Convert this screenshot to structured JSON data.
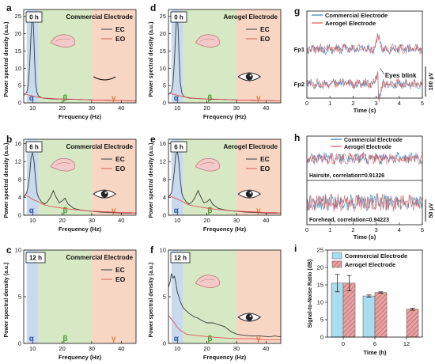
{
  "chart_data": [
    {
      "id": "a",
      "panel_letter": "a",
      "type": "line",
      "time_label": "0 h",
      "electrode_label": "Commercial Electrode",
      "xlabel": "Frequency (Hz)",
      "ylabel": "Power spectral density (a.u.)",
      "xlim": [
        7,
        45
      ],
      "ylim": [
        0,
        27
      ],
      "xticks": [
        10,
        20,
        30,
        40
      ],
      "yticks": [
        0,
        5,
        10,
        15,
        20,
        25
      ],
      "band_labels": [
        "α",
        "β",
        "γ"
      ],
      "bands": [
        {
          "name": "alpha",
          "range": [
            8,
            12
          ],
          "color": "#c9d9ee"
        },
        {
          "name": "beta",
          "range": [
            12,
            30
          ],
          "color": "#d6e9c4"
        },
        {
          "name": "gamma",
          "range": [
            30,
            45
          ],
          "color": "#f8d6c4"
        }
      ],
      "legend": [
        "EC",
        "EO"
      ],
      "legend_position": "top-right",
      "eye_state": "closed",
      "series": [
        {
          "name": "EC",
          "color": "#3a3a3a",
          "x": [
            7,
            8,
            8.5,
            9,
            9.5,
            9.8,
            10,
            10.3,
            10.6,
            11,
            11.5,
            12,
            13,
            14,
            16,
            18,
            20,
            22,
            25,
            28,
            31,
            34,
            37,
            40,
            43,
            45
          ],
          "y": [
            2.2,
            3,
            5,
            11,
            20,
            24.5,
            25.5,
            22,
            14,
            6,
            3,
            2,
            1.5,
            1.3,
            1.2,
            1.1,
            1.1,
            1,
            1,
            0.9,
            0.8,
            0.8,
            0.7,
            0.7,
            0.6,
            0.6
          ]
        },
        {
          "name": "EO",
          "color": "#e05555",
          "x": [
            7,
            8,
            9,
            10,
            11,
            12,
            14,
            16,
            18,
            20,
            22,
            25,
            28,
            31,
            34,
            37,
            40,
            43,
            45
          ],
          "y": [
            2.6,
            2.4,
            2.2,
            2,
            1.8,
            1.6,
            1.4,
            1.3,
            1.2,
            1.1,
            1.1,
            1,
            0.9,
            0.8,
            0.8,
            0.7,
            0.7,
            0.6,
            0.6
          ]
        }
      ]
    },
    {
      "id": "b",
      "panel_letter": "b",
      "type": "line",
      "time_label": "6 h",
      "electrode_label": "Commercial Electrode",
      "xlabel": "Frequency (Hz)",
      "ylabel": "Power spectral density (a.u.)",
      "xlim": [
        7,
        45
      ],
      "ylim": [
        0,
        17
      ],
      "xticks": [
        10,
        20,
        30,
        40
      ],
      "yticks": [
        0,
        4,
        8,
        12,
        16
      ],
      "band_labels": [
        "α",
        "β",
        "γ"
      ],
      "bands": [
        {
          "name": "alpha",
          "range": [
            8,
            12
          ],
          "color": "#c9d9ee"
        },
        {
          "name": "beta",
          "range": [
            12,
            30
          ],
          "color": "#d6e9c4"
        },
        {
          "name": "gamma",
          "range": [
            30,
            45
          ],
          "color": "#f8d6c4"
        }
      ],
      "legend": [
        "EC",
        "EO"
      ],
      "legend_position": "top-right",
      "eye_state": "open",
      "series": [
        {
          "name": "EC",
          "color": "#3a3a3a",
          "x": [
            7,
            8,
            8.5,
            9,
            9.5,
            10,
            10.5,
            11,
            11.5,
            12,
            13,
            14,
            15,
            16,
            17,
            18,
            19,
            20,
            21,
            22,
            24,
            26,
            28,
            30,
            33,
            36,
            40,
            43,
            45
          ],
          "y": [
            4,
            5,
            6.5,
            9,
            13,
            14,
            12,
            8,
            5,
            4,
            3,
            2.5,
            3,
            4,
            5.5,
            4,
            2.8,
            3.2,
            3.8,
            2.5,
            1.5,
            1.2,
            1,
            0.9,
            0.7,
            0.6,
            0.5,
            0.5,
            0.5
          ]
        },
        {
          "name": "EO",
          "color": "#e05555",
          "x": [
            7,
            8,
            9,
            10,
            11,
            12,
            13,
            14,
            16,
            18,
            20,
            22,
            25,
            28,
            31,
            34,
            37,
            40,
            43,
            45
          ],
          "y": [
            4.6,
            4.4,
            4,
            3.5,
            3.3,
            3,
            2.6,
            2.3,
            2,
            1.8,
            1.6,
            1.4,
            1.2,
            1,
            0.9,
            0.8,
            0.7,
            0.6,
            0.6,
            0.5
          ]
        }
      ]
    },
    {
      "id": "c",
      "panel_letter": "c",
      "type": "line",
      "time_label": "12 h",
      "electrode_label": "Commercial Electrode",
      "xlabel": "Frequency (Hz)",
      "ylabel": "Power spectral density (a.u.)",
      "xlim": [
        7,
        45
      ],
      "ylim": [
        0,
        10
      ],
      "xticks": [
        10,
        20,
        30,
        40
      ],
      "yticks": [
        0,
        5,
        10
      ],
      "band_labels": [
        "α",
        "β",
        "γ"
      ],
      "bands": [
        {
          "name": "alpha",
          "range": [
            8,
            12
          ],
          "color": "#c9d9ee"
        },
        {
          "name": "beta",
          "range": [
            12,
            30
          ],
          "color": "#d6e9c4"
        },
        {
          "name": "gamma",
          "range": [
            30,
            45
          ],
          "color": "#f8d6c4"
        }
      ],
      "legend": [
        "EC",
        "EO"
      ],
      "legend_position": "top-right",
      "eye_state": "none",
      "series": [
        {
          "name": "EC",
          "color": "#3a3a3a",
          "x": [],
          "y": []
        },
        {
          "name": "EO",
          "color": "#e05555",
          "x": [],
          "y": []
        }
      ]
    },
    {
      "id": "d",
      "panel_letter": "d",
      "type": "line",
      "time_label": "0 h",
      "electrode_label": "Aerogel Electrode",
      "xlabel": "Frequency (Hz)",
      "ylabel": "Power spectral density (a.u.)",
      "xlim": [
        7,
        45
      ],
      "ylim": [
        0,
        27
      ],
      "xticks": [
        10,
        20,
        30,
        40
      ],
      "yticks": [
        0,
        5,
        10,
        15,
        20,
        25
      ],
      "band_labels": [
        "α",
        "β",
        "γ"
      ],
      "bands": [
        {
          "name": "alpha",
          "range": [
            8,
            12
          ],
          "color": "#c9d9ee"
        },
        {
          "name": "beta",
          "range": [
            12,
            30
          ],
          "color": "#d6e9c4"
        },
        {
          "name": "gamma",
          "range": [
            30,
            45
          ],
          "color": "#f8d6c4"
        }
      ],
      "legend": [
        "EC",
        "EO"
      ],
      "legend_position": "top-right",
      "eye_state": "open",
      "series": [
        {
          "name": "EC",
          "color": "#3a3a3a",
          "x": [
            7,
            8,
            8.5,
            9,
            9.5,
            9.8,
            10,
            10.3,
            10.6,
            11,
            11.5,
            12,
            13,
            14,
            16,
            18,
            20,
            22,
            25,
            28,
            31,
            34,
            37,
            40,
            43,
            45
          ],
          "y": [
            2.4,
            3.2,
            5.5,
            12,
            21,
            25,
            25.5,
            21,
            13,
            6,
            3,
            2,
            1.6,
            1.4,
            1.3,
            1.2,
            1.1,
            1,
            1,
            0.9,
            0.8,
            0.8,
            0.7,
            0.7,
            0.6,
            0.6
          ]
        },
        {
          "name": "EO",
          "color": "#e05555",
          "x": [
            7,
            8,
            9,
            10,
            11,
            12,
            14,
            16,
            18,
            20,
            22,
            25,
            28,
            31,
            34,
            37,
            40,
            43,
            45
          ],
          "y": [
            2.8,
            2.6,
            2.4,
            2.2,
            2,
            1.8,
            1.5,
            1.3,
            1.2,
            1.1,
            1.1,
            1,
            0.9,
            0.8,
            0.8,
            0.7,
            0.7,
            0.6,
            0.6
          ]
        }
      ]
    },
    {
      "id": "e",
      "panel_letter": "e",
      "type": "line",
      "time_label": "6 h",
      "electrode_label": "Aerogel Electrode",
      "xlabel": "Frequency (Hz)",
      "ylabel": "Power spectral density (a.u.)",
      "xlim": [
        7,
        45
      ],
      "ylim": [
        0,
        17
      ],
      "xticks": [
        10,
        20,
        30,
        40
      ],
      "yticks": [
        0,
        4,
        8,
        12,
        16
      ],
      "band_labels": [
        "α",
        "β",
        "γ"
      ],
      "bands": [
        {
          "name": "alpha",
          "range": [
            8,
            12
          ],
          "color": "#c9d9ee"
        },
        {
          "name": "beta",
          "range": [
            12,
            30
          ],
          "color": "#d6e9c4"
        },
        {
          "name": "gamma",
          "range": [
            30,
            45
          ],
          "color": "#f8d6c4"
        }
      ],
      "legend": [
        "EC",
        "EO"
      ],
      "legend_position": "top-right",
      "eye_state": "open",
      "series": [
        {
          "name": "EC",
          "color": "#3a3a3a",
          "x": [
            7,
            8,
            8.5,
            9,
            9.5,
            10,
            10.5,
            11,
            11.5,
            12,
            13,
            14,
            15,
            16,
            17,
            18,
            19,
            20,
            21,
            22,
            24,
            26,
            28,
            30,
            33,
            36,
            40,
            43,
            45
          ],
          "y": [
            4,
            5,
            7,
            10,
            13.5,
            14.5,
            12,
            8,
            5,
            4,
            3,
            2.5,
            3,
            4,
            5.5,
            4,
            2.8,
            3,
            3.6,
            2.4,
            1.5,
            1.2,
            1,
            0.9,
            0.7,
            0.6,
            0.5,
            0.5,
            0.5
          ]
        },
        {
          "name": "EO",
          "color": "#e05555",
          "x": [
            7,
            8,
            9,
            10,
            11,
            12,
            13,
            14,
            16,
            18,
            20,
            22,
            25,
            28,
            31,
            34,
            37,
            40,
            43,
            45
          ],
          "y": [
            4.4,
            4.2,
            3.9,
            3.6,
            3.3,
            3,
            2.6,
            2.3,
            2,
            1.8,
            1.6,
            1.4,
            1.2,
            1,
            0.9,
            0.8,
            0.7,
            0.6,
            0.6,
            0.5
          ]
        }
      ]
    },
    {
      "id": "f",
      "panel_letter": "f",
      "type": "line",
      "time_label": "12 h",
      "electrode_label": "",
      "xlabel": "Frequency (Hz)",
      "ylabel": "Power spectral density (a.u.)",
      "xlim": [
        7,
        45
      ],
      "ylim": [
        0,
        10
      ],
      "xticks": [
        10,
        20,
        30,
        40
      ],
      "yticks": [
        0,
        5,
        10
      ],
      "band_labels": [
        "α",
        "β",
        "γ"
      ],
      "bands": [
        {
          "name": "alpha",
          "range": [
            8,
            12
          ],
          "color": "#c9d9ee"
        },
        {
          "name": "beta",
          "range": [
            12,
            30
          ],
          "color": "#d6e9c4"
        },
        {
          "name": "gamma",
          "range": [
            30,
            45
          ],
          "color": "#f8d6c4"
        }
      ],
      "legend": [],
      "legend_position": "none",
      "eye_state": "open",
      "series": [
        {
          "name": "EC",
          "color": "#3a3a3a",
          "x": [
            7,
            7.5,
            8,
            8.5,
            9,
            9.5,
            10,
            10.5,
            11,
            12,
            13,
            14,
            15,
            16,
            17,
            18,
            20,
            22,
            24,
            26,
            28,
            30,
            32,
            35,
            38,
            41,
            43,
            45
          ],
          "y": [
            6,
            6.5,
            7.5,
            7,
            7.2,
            6.5,
            5.5,
            5,
            4.5,
            3.8,
            3.5,
            3.2,
            3,
            2.8,
            2.7,
            2.5,
            2.2,
            2.2,
            2,
            1.8,
            1.3,
            1,
            0.9,
            0.8,
            0.8,
            0.7,
            0.8,
            0.7
          ]
        },
        {
          "name": "EO",
          "color": "#e05555",
          "x": [
            7,
            8,
            9,
            10,
            11,
            12,
            13,
            15,
            18,
            21,
            25,
            30,
            35,
            40,
            45
          ],
          "y": [
            3,
            2.6,
            2.2,
            1.7,
            1.4,
            1.2,
            1,
            0.9,
            0.8,
            0.7,
            0.6,
            0.5,
            0.5,
            0.4,
            0.4
          ]
        }
      ]
    },
    {
      "id": "g",
      "panel_letter": "g",
      "type": "line",
      "xlabel": "Time (s)",
      "xlim": [
        0,
        5
      ],
      "xticks": [
        0,
        1,
        2,
        3,
        4,
        5
      ],
      "channel_labels": [
        "Fp1",
        "Fp2"
      ],
      "annotation": "Eyes blink",
      "scale_bar_label": "100 μV",
      "legend": [
        "Commercial Electrode",
        "Aerogel Electrode"
      ],
      "legend_position": "top-left",
      "series": [
        {
          "name": "Commercial Electrode",
          "color": "#2f7fb4",
          "channel": "Fp1",
          "style": "noise",
          "blink_at": 3.1
        },
        {
          "name": "Aerogel Electrode",
          "color": "#e05555",
          "channel": "Fp1",
          "style": "noise",
          "blink_at": 3.1
        },
        {
          "name": "Commercial Electrode",
          "color": "#2f7fb4",
          "channel": "Fp2",
          "style": "noise",
          "blink_at": 3.1
        },
        {
          "name": "Aerogel Electrode",
          "color": "#e05555",
          "channel": "Fp2",
          "style": "noise",
          "blink_at": 3.1
        }
      ]
    },
    {
      "id": "h",
      "panel_letter": "h",
      "type": "line",
      "xlabel": "Time (s)",
      "xlim": [
        0,
        5
      ],
      "xticks": [
        0,
        1,
        2,
        3,
        4,
        5
      ],
      "legend": [
        "Commercial Electrode",
        "Aerogel Electrode"
      ],
      "legend_position": "top",
      "subpanel_labels": [
        "Hairsite, correlation=0.91326",
        "Forehead, correlation=0.94223"
      ],
      "scale_bar_label": "50 μV",
      "series": [
        {
          "name": "Commercial Electrode",
          "color": "#2f7fb4",
          "site": "Hairsite"
        },
        {
          "name": "Aerogel Electrode",
          "color": "#e05555",
          "site": "Hairsite"
        },
        {
          "name": "Commercial Electrode",
          "color": "#2f7fb4",
          "site": "Forehead"
        },
        {
          "name": "Aerogel Electrode",
          "color": "#e05555",
          "site": "Forehead"
        }
      ]
    },
    {
      "id": "i",
      "panel_letter": "i",
      "type": "bar",
      "xlabel": "Time (h)",
      "ylabel": "Signal-to-Noise Ratio (dB)",
      "categories": [
        "0",
        "6",
        "12"
      ],
      "ylim": [
        0,
        25
      ],
      "yticks": [
        0,
        5,
        10,
        15,
        20,
        25
      ],
      "legend_position": "top-left",
      "series": [
        {
          "name": "Commercial Electrode",
          "color": "#a9dcef",
          "values": [
            15.5,
            11.8,
            null
          ],
          "errors": [
            2.5,
            0.3,
            null
          ]
        },
        {
          "name": "Aerogel Electrode",
          "color": "#e8a3a3",
          "values": [
            15.5,
            12.8,
            8.0
          ],
          "errors": [
            2.2,
            0.2,
            0.3
          ]
        }
      ]
    }
  ]
}
